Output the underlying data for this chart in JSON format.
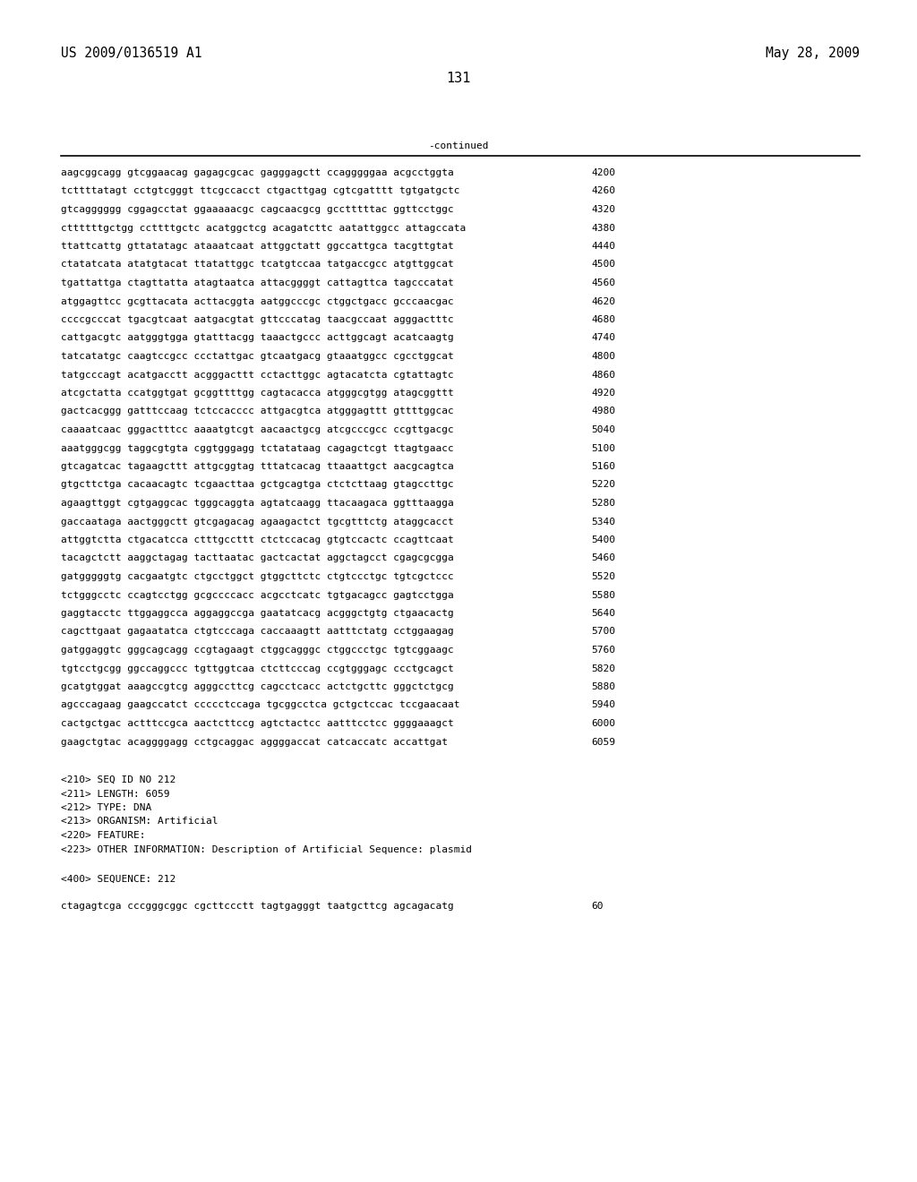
{
  "header_left": "US 2009/0136519 A1",
  "header_right": "May 28, 2009",
  "page_number": "131",
  "continued_label": "-continued",
  "sequence_lines": [
    [
      "aagcggcagg gtcggaacag gagagcgcac gagggagctt ccagggggaa acgcctggta",
      "4200"
    ],
    [
      "tcttttatagt cctgtcgggt ttcgccacct ctgacttgag cgtcgatttt tgtgatgctc",
      "4260"
    ],
    [
      "gtcagggggg cggagcctat ggaaaaacgc cagcaacgcg gcctttttac ggttcctggc",
      "4320"
    ],
    [
      "cttttttgctgg ccttttgctc acatggctcg acagatcttc aatattggcc attagccata",
      "4380"
    ],
    [
      "ttattcattg gttatatagc ataaatcaat attggctatt ggccattgca tacgttgtat",
      "4440"
    ],
    [
      "ctatatcata atatgtacat ttatattggc tcatgtccaa tatgaccgcc atgttggcat",
      "4500"
    ],
    [
      "tgattattga ctagttatta atagtaatca attacggggt cattagttca tagcccatat",
      "4560"
    ],
    [
      "atggagttcc gcgttacata acttacggta aatggcccgc ctggctgacc gcccaacgac",
      "4620"
    ],
    [
      "ccccgcccat tgacgtcaat aatgacgtat gttcccatag taacgccaat agggactttc",
      "4680"
    ],
    [
      "cattgacgtc aatgggtgga gtatttacgg taaactgccc acttggcagt acatcaagtg",
      "4740"
    ],
    [
      "tatcatatgc caagtccgcc ccctattgac gtcaatgacg gtaaatggcc cgcctggcat",
      "4800"
    ],
    [
      "tatgcccagt acatgacctt acgggacttt cctacttggc agtacatcta cgtattagtc",
      "4860"
    ],
    [
      "atcgctatta ccatggtgat gcggttttgg cagtacacca atgggcgtgg atagcggttt",
      "4920"
    ],
    [
      "gactcacggg gatttccaag tctccacccc attgacgtca atgggagttt gttttggcac",
      "4980"
    ],
    [
      "caaaatcaac gggactttcc aaaatgtcgt aacaactgcg atcgcccgcc ccgttgacgc",
      "5040"
    ],
    [
      "aaatgggcgg taggcgtgta cggtgggagg tctatataag cagagctcgt ttagtgaacc",
      "5100"
    ],
    [
      "gtcagatcac tagaagcttt attgcggtag tttatcacag ttaaattgct aacgcagtca",
      "5160"
    ],
    [
      "gtgcttctga cacaacagtc tcgaacttaa gctgcagtga ctctcttaag gtagccttgc",
      "5220"
    ],
    [
      "agaagttggt cgtgaggcac tgggcaggta agtatcaagg ttacaagaca ggtttaagga",
      "5280"
    ],
    [
      "gaccaataga aactgggctt gtcgagacag agaagactct tgcgtttctg ataggcacct",
      "5340"
    ],
    [
      "attggtctta ctgacatcca ctttgccttt ctctccacag gtgtccactc ccagttcaat",
      "5400"
    ],
    [
      "tacagctctt aaggctagag tacttaatac gactcactat aggctagcct cgagcgcgga",
      "5460"
    ],
    [
      "gatgggggtg cacgaatgtc ctgcctggct gtggcttctc ctgtccctgc tgtcgctccc",
      "5520"
    ],
    [
      "tctgggcctc ccagtcctgg gcgccccacc acgcctcatc tgtgacagcc gagtcctgga",
      "5580"
    ],
    [
      "gaggtacctc ttggaggcca aggaggccga gaatatcacg acgggctgtg ctgaacactg",
      "5640"
    ],
    [
      "cagcttgaat gagaatatca ctgtcccaga caccaaagtt aatttctatg cctggaagag",
      "5700"
    ],
    [
      "gatggaggtc gggcagcagg ccgtagaagt ctggcagggc ctggccctgc tgtcggaagc",
      "5760"
    ],
    [
      "tgtcctgcgg ggccaggccc tgttggtcaa ctcttcccag ccgtgggagc ccctgcagct",
      "5820"
    ],
    [
      "gcatgtggat aaagccgtcg agggccttcg cagcctcacc actctgcttc gggctctgcg",
      "5880"
    ],
    [
      "agcccagaag gaagccatct ccccctccaga tgcggcctca gctgctccac tccgaacaat",
      "5940"
    ],
    [
      "cactgctgac actttccgca aactcttccg agtctactcc aatttcctcc ggggaaagct",
      "6000"
    ],
    [
      "gaagctgtac acaggggagg cctgcaggac aggggaccat catcaccatc accattgat",
      "6059"
    ]
  ],
  "metadata_lines": [
    "<210> SEQ ID NO 212",
    "<211> LENGTH: 6059",
    "<212> TYPE: DNA",
    "<213> ORGANISM: Artificial",
    "<220> FEATURE:",
    "<223> OTHER INFORMATION: Description of Artificial Sequence: plasmid"
  ],
  "seq_label": "<400> SEQUENCE: 212",
  "last_seq_line": [
    "ctagagtcga cccgggcggc cgcttccctt tagtgagggt taatgcttcg agcagacatg",
    "60"
  ],
  "background_color": "#ffffff",
  "text_color": "#000000",
  "font_size_header": 10.5,
  "font_size_body": 8.0,
  "font_size_page": 11
}
